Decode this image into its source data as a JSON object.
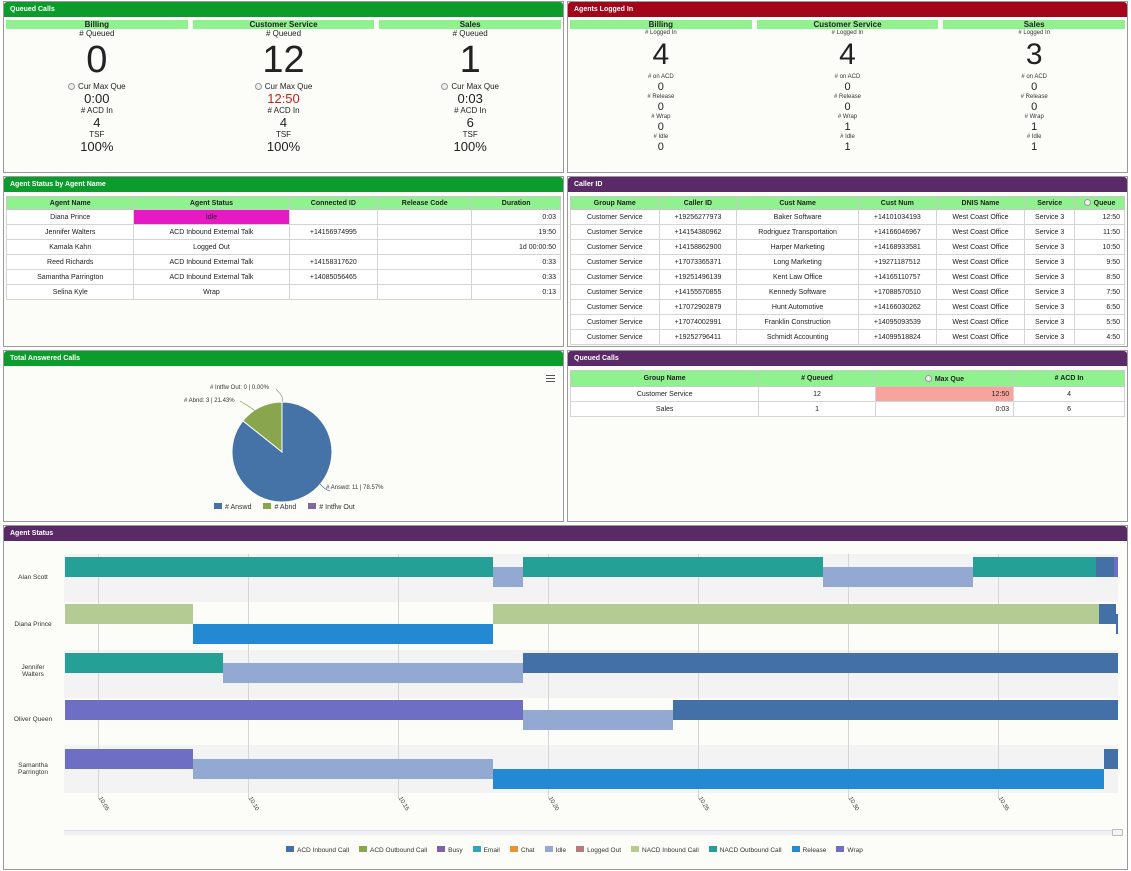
{
  "queued_calls": {
    "title": "Queued Calls",
    "columns": [
      {
        "name": "Billing",
        "queued_label": "# Queued",
        "queued": "0",
        "max_label": "Cur Max Que",
        "max": "0:00",
        "acd_label": "# ACD In",
        "acd": "4",
        "tsf_label": "TSF",
        "tsf": "100%"
      },
      {
        "name": "Customer Service",
        "queued_label": "# Queued",
        "queued": "12",
        "max_label": "Cur Max Que",
        "max": "12:50",
        "acd_label": "# ACD In",
        "acd": "4",
        "tsf_label": "TSF",
        "tsf": "100%"
      },
      {
        "name": "Sales",
        "queued_label": "# Queued",
        "queued": "1",
        "max_label": "Cur Max Que",
        "max": "0:03",
        "acd_label": "# ACD In",
        "acd": "6",
        "tsf_label": "TSF",
        "tsf": "100%"
      }
    ]
  },
  "agents_logged_in": {
    "title": "Agents Logged In",
    "labels": {
      "logged": "# Logged In",
      "acd": "# on ACD",
      "release": "# Release",
      "wrap": "# Wrap",
      "idle": "# Idle"
    },
    "columns": [
      {
        "name": "Billing",
        "logged": "4",
        "acd": "0",
        "release": "0",
        "wrap": "0",
        "idle": "0"
      },
      {
        "name": "Customer Service",
        "logged": "4",
        "acd": "0",
        "release": "0",
        "wrap": "1",
        "idle": "1"
      },
      {
        "name": "Sales",
        "logged": "3",
        "acd": "0",
        "release": "0",
        "wrap": "1",
        "idle": "1"
      }
    ]
  },
  "agent_status_by_name": {
    "title": "Agent Status by Agent Name",
    "headers": [
      "Agent Name",
      "Agent Status",
      "Connected ID",
      "Release Code",
      "Duration"
    ],
    "rows": [
      [
        "Diana Prince",
        "Idle",
        "",
        "",
        "0:03"
      ],
      [
        "Jennifer Walters",
        "ACD Inbound External Talk",
        "+14156974995",
        "",
        "19:50"
      ],
      [
        "Kamala Kahn",
        "Logged Out",
        "",
        "",
        "1d 00:00:50"
      ],
      [
        "Reed Richards",
        "ACD Inbound External Talk",
        "+14158317620",
        "",
        "0:33"
      ],
      [
        "Samantha Parrington",
        "ACD Inbound External Talk",
        "+14085056465",
        "",
        "0:33"
      ],
      [
        "Selina Kyle",
        "Wrap",
        "",
        "",
        "0:13"
      ]
    ],
    "highlight_color": "#e619c4"
  },
  "caller_id": {
    "title": "Caller ID",
    "headers": [
      "Group Name",
      "Caller ID",
      "Cust Name",
      "Cust Num",
      "DNIS Name",
      "Service",
      "Queue"
    ],
    "rows": [
      [
        "Customer Service",
        "+19256277973",
        "Baker Software",
        "+14101034193",
        "West Coast Office",
        "Service 3",
        "12:50"
      ],
      [
        "Customer Service",
        "+14154380962",
        "Rodriguez Transportation",
        "+14166046967",
        "West Coast Office",
        "Service 3",
        "11:50"
      ],
      [
        "Customer Service",
        "+14158862900",
        "Harper Marketing",
        "+14168933581",
        "West Coast Office",
        "Service 3",
        "10:50"
      ],
      [
        "Customer Service",
        "+17073365371",
        "Long Marketing",
        "+19271187512",
        "West Coast Office",
        "Service 3",
        "9:50"
      ],
      [
        "Customer Service",
        "+19251496139",
        "Kent Law Office",
        "+14165110757",
        "West Coast Office",
        "Service 3",
        "8:50"
      ],
      [
        "Customer Service",
        "+14155570855",
        "Kennedy Software",
        "+17088570510",
        "West Coast Office",
        "Service 3",
        "7:50"
      ],
      [
        "Customer Service",
        "+17072902879",
        "Hunt Automotive",
        "+14166030262",
        "West Coast Office",
        "Service 3",
        "6:50"
      ],
      [
        "Customer Service",
        "+17074002991",
        "Franklin Construction",
        "+14095093539",
        "West Coast Office",
        "Service 3",
        "5:50"
      ],
      [
        "Customer Service",
        "+19252796411",
        "Schmidt Accounting",
        "+14099518824",
        "West Coast Office",
        "Service 3",
        "4:50"
      ]
    ]
  },
  "total_answered": {
    "title": "Total Answered Calls",
    "labels": {
      "out": "# Intflw Out: 0 | 0.00%",
      "abnd": "# Abnd: 3 | 21.43%",
      "answd": "# Answd: 11 | 78.57%"
    },
    "legend": [
      "# Answd",
      "# Abnd",
      "# Intflw Out"
    ],
    "colors": {
      "answd": "#4572a7",
      "abnd": "#89a54e",
      "out": "#80699b"
    }
  },
  "queued_calls_table": {
    "title": "Queued Calls",
    "headers": [
      "Group Name",
      "# Queued",
      "Max Que",
      "# ACD In"
    ],
    "rows": [
      [
        "Customer Service",
        "12",
        "12:50",
        "4"
      ],
      [
        "Sales",
        "1",
        "0:03",
        "6"
      ]
    ],
    "alert_color": "#f7a59c"
  },
  "agent_status_chart": {
    "title": "Agent Status",
    "agents": [
      "Alan Scott",
      "Diana Prince",
      "Jennifer Walters",
      "Oliver Queen",
      "Samantha Parrington"
    ],
    "ticks": [
      "10:05",
      "10:10",
      "10:15",
      "10:20",
      "10:25",
      "10:30",
      "10:35"
    ],
    "legend": [
      {
        "name": "ACD Inbound Call",
        "color": "#4470a8"
      },
      {
        "name": "ACD Outbound Call",
        "color": "#88a64d"
      },
      {
        "name": "Busy",
        "color": "#7d62a8"
      },
      {
        "name": "Email",
        "color": "#2fa5b5"
      },
      {
        "name": "Chat",
        "color": "#e8903a"
      },
      {
        "name": "Idle",
        "color": "#93a9d1"
      },
      {
        "name": "Logged Out",
        "color": "#b07b78"
      },
      {
        "name": "NACD Inbound Call",
        "color": "#b4cc93"
      },
      {
        "name": "NACD Outbound Call",
        "color": "#24a096"
      },
      {
        "name": "Release",
        "color": "#2389d3"
      },
      {
        "name": "Wrap",
        "color": "#6e6ec4"
      }
    ]
  }
}
